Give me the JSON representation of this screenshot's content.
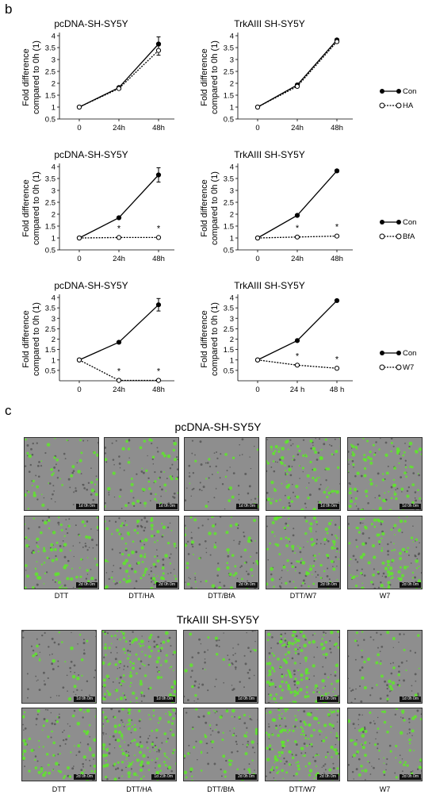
{
  "panel_b_label": "b",
  "panel_c_label": "c",
  "legends": [
    {
      "con": "Con",
      "treat": "HA"
    },
    {
      "con": "Con",
      "treat": "BfA"
    },
    {
      "con": "Con",
      "treat": "W7"
    }
  ],
  "chart_data": [
    {
      "type": "line",
      "title": "pcDNA-SH-SY5Y",
      "ylabel": "Fold difference compared to 0h (1)",
      "categories": [
        "0",
        "24h",
        "48h"
      ],
      "ylim": [
        0.5,
        4
      ],
      "yticks": [
        "0.5",
        "1",
        "1.5",
        "2",
        "2.5",
        "3",
        "3.5",
        "4"
      ],
      "series": [
        {
          "name": "Con",
          "values": [
            1,
            1.82,
            3.65
          ],
          "err": [
            0,
            0.05,
            0.3
          ]
        },
        {
          "name": "HA",
          "values": [
            1,
            1.78,
            3.38
          ],
          "err": [
            0,
            0.05,
            0.2
          ]
        }
      ],
      "asterisks": []
    },
    {
      "type": "line",
      "title": "TrkAIII SH-SY5Y",
      "ylabel": "Fold difference compared to 0h (1)",
      "categories": [
        "0",
        "24h",
        "48h"
      ],
      "ylim": [
        0.5,
        4
      ],
      "yticks": [
        "0.5",
        "1",
        "1.5",
        "2",
        "2.5",
        "3",
        "3.5",
        "4"
      ],
      "series": [
        {
          "name": "Con",
          "values": [
            1,
            1.93,
            3.82
          ],
          "err": [
            0,
            0.05,
            0.06
          ]
        },
        {
          "name": "HA",
          "values": [
            1,
            1.87,
            3.75
          ],
          "err": [
            0,
            0.05,
            0.05
          ]
        }
      ],
      "asterisks": []
    },
    {
      "type": "line",
      "title": "pcDNA-SH-SY5Y",
      "ylabel": "Fold difference compared to 0h (1)",
      "categories": [
        "0",
        "24h",
        "48h"
      ],
      "ylim": [
        0.5,
        4
      ],
      "yticks": [
        "0.5",
        "1",
        "1.5",
        "2",
        "2.5",
        "3",
        "3.5",
        "4"
      ],
      "series": [
        {
          "name": "Con",
          "values": [
            1,
            1.85,
            3.65
          ],
          "err": [
            0,
            0.05,
            0.3
          ]
        },
        {
          "name": "BfA",
          "values": [
            1,
            1.02,
            1.02
          ],
          "err": [
            0,
            0.02,
            0.02
          ]
        }
      ],
      "asterisks": [
        1,
        2
      ]
    },
    {
      "type": "line",
      "title": "TrkAIII SH-SY5Y",
      "ylabel": "Fold difference compared to 0h (1)",
      "categories": [
        "0",
        "24h",
        "48h"
      ],
      "ylim": [
        0.5,
        4
      ],
      "yticks": [
        "0.5",
        "1",
        "1.5",
        "2",
        "2.5",
        "3",
        "3.5",
        "4"
      ],
      "series": [
        {
          "name": "Con",
          "values": [
            1,
            1.95,
            3.82
          ],
          "err": [
            0,
            0.05,
            0.06
          ]
        },
        {
          "name": "BfA",
          "values": [
            1,
            1.04,
            1.08
          ],
          "err": [
            0,
            0.02,
            0.02
          ]
        }
      ],
      "asterisks": [
        1,
        2
      ]
    },
    {
      "type": "line",
      "title": "pcDNA-SH-SY5Y",
      "ylabel": "Fold difference compared to 0h (1)",
      "categories": [
        "0",
        "24h",
        "48h"
      ],
      "ylim": [
        0,
        4
      ],
      "yticks": [
        "0.5",
        "1",
        "1.5",
        "2",
        "2.5",
        "3",
        "3.5",
        "4"
      ],
      "series": [
        {
          "name": "Con",
          "values": [
            1,
            1.85,
            3.65
          ],
          "err": [
            0,
            0.05,
            0.3
          ]
        },
        {
          "name": "W7",
          "values": [
            1,
            0.02,
            0.02
          ],
          "err": [
            0,
            0.02,
            0.02
          ]
        }
      ],
      "asterisks": [
        1,
        2
      ]
    },
    {
      "type": "line",
      "title": "TrkAIII SH-SY5Y",
      "ylabel": "Fold difference compared to 0h (1)",
      "categories": [
        "0",
        "24 h",
        "48 h"
      ],
      "ylim": [
        0,
        4
      ],
      "yticks": [
        "0.5",
        "1",
        "1.5",
        "2",
        "2.5",
        "3",
        "3.5",
        "4"
      ],
      "series": [
        {
          "name": "Con",
          "values": [
            1,
            1.93,
            3.85
          ],
          "err": [
            0,
            0.05,
            0.05
          ]
        },
        {
          "name": "W7",
          "values": [
            1,
            0.75,
            0.6
          ],
          "err": [
            0,
            0.03,
            0.03
          ]
        }
      ],
      "asterisks": [
        1,
        2
      ]
    }
  ],
  "panel_c": {
    "title_pcdna": "pcDNA-SH-SY5Y",
    "title_trk": "TrkAIII SH-SY5Y",
    "labels_pcdna": [
      "DTT",
      "DTT/HA",
      "DTT/BfA",
      "DTT/W7",
      "W7"
    ],
    "labels_trk": [
      "DTT",
      "DTT/HA",
      "DTT/BfA",
      "DTT/W7",
      "W7"
    ],
    "stamps_pcdna_row1": [
      "1d 0h 0m",
      "1d 0h 0m",
      "1d 0h 0m",
      "1d 0h 0m",
      "1d 0h 0m"
    ],
    "stamps_pcdna_row2": [
      "2d 0h 0m",
      "2d 0h 0m",
      "2d 0h 0m",
      "2d 0h 0m",
      "2d 0h 0m"
    ],
    "stamps_trk_row1": [
      "1d 0h 0m",
      "1d 0h 0m",
      "1d 0h 0m",
      "1d 0h 0m",
      "1d 0h 0m"
    ],
    "stamps_trk_row2": [
      "2d 0h 0m",
      "1d 23h 0m",
      "2d 0h 0m",
      "2d 0h 0m",
      "2d 0h 0m"
    ],
    "green_density_pcdna_row1": [
      0.25,
      0.3,
      0.1,
      0.55,
      0.55
    ],
    "green_density_pcdna_row2": [
      0.5,
      0.55,
      0.35,
      0.6,
      0.6
    ],
    "green_density_trk_row1": [
      0.12,
      0.7,
      0.08,
      0.9,
      0.2
    ],
    "green_density_trk_row2": [
      0.45,
      0.8,
      0.35,
      0.9,
      0.4
    ],
    "colors": {
      "cell_green": "#5ee82a",
      "background_gray": "#8e8e8e"
    }
  }
}
